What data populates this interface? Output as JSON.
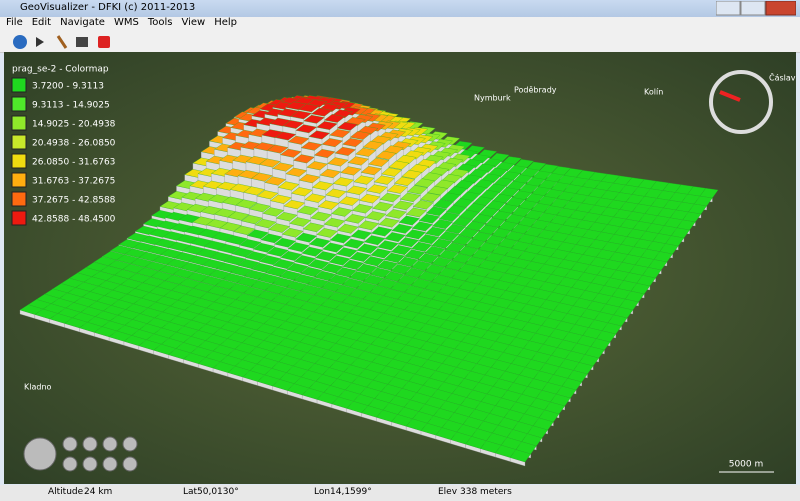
{
  "window": {
    "title": "GeoVisualizer - DFKI (c) 2011-2013"
  },
  "menu": [
    "File",
    "Edit",
    "Navigate",
    "WMS",
    "Tools",
    "View",
    "Help"
  ],
  "legend": {
    "title": "prag_se-2 - Colormap",
    "items": [
      {
        "label": "3.7200 - 9.3113",
        "color": "#1fd81f"
      },
      {
        "label": "9.3113 - 14.9025",
        "color": "#4fe82a"
      },
      {
        "label": "14.9025 - 20.4938",
        "color": "#8fe82a"
      },
      {
        "label": "20.4938 - 26.0850",
        "color": "#c8e82a"
      },
      {
        "label": "26.0850 - 31.6763",
        "color": "#f0dc10"
      },
      {
        "label": "31.6763 - 37.2675",
        "color": "#ffae10"
      },
      {
        "label": "37.2675 - 42.8588",
        "color": "#ff6a10"
      },
      {
        "label": "42.8588 - 48.4500",
        "color": "#ee1a10"
      }
    ]
  },
  "map_labels": [
    "Nymburk",
    "Poděbrady",
    "Kolín",
    "Čáslav",
    "Kladno"
  ],
  "scale": "5000 m",
  "status": [
    {
      "label": "Altitude",
      "value": "24 km"
    },
    {
      "label": "Lat",
      "value": "50,0130°"
    },
    {
      "label": "Lon",
      "value": "14,1599°"
    },
    {
      "label": "Elev",
      "value": "338 meters"
    }
  ]
}
